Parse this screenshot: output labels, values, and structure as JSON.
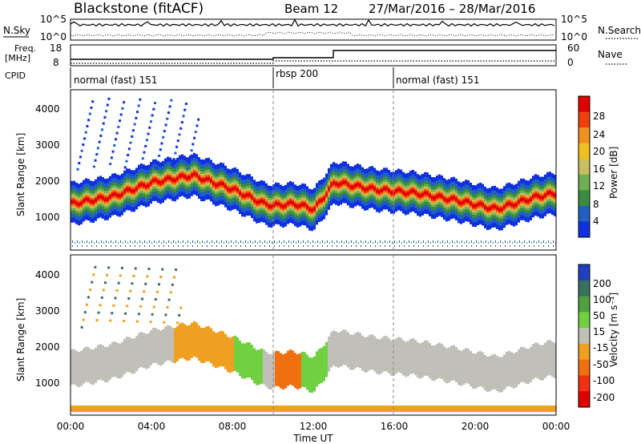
{
  "header": {
    "title": "Blackstone (fitACF)",
    "beam": "Beam 12",
    "date_range": "27/Mar/2016 – 28/Mar/2016"
  },
  "noise_panel": {
    "left_label": "N.Sky",
    "right_label": "N.Search",
    "left_ticks": [
      "10^5",
      "10^0"
    ],
    "right_ticks": [
      "10^5",
      "10^0"
    ]
  },
  "freq_panel": {
    "left_label_line1": "Freq.",
    "left_label_line2": "[MHz]",
    "left_ticks": [
      "18",
      "8"
    ],
    "right_label": "Nave",
    "right_ticks": [
      "60",
      "0"
    ]
  },
  "cpid_panel": {
    "label": "CPID",
    "segments": [
      "normal (fast) 151",
      "rbsp 200",
      "normal (fast) 151"
    ]
  },
  "x_axis": {
    "label": "Time UT",
    "ticks": [
      "00:00",
      "04:00",
      "08:00",
      "12:00",
      "16:00",
      "20:00",
      "00:00"
    ]
  },
  "power_panel": {
    "ylabel": "Slant Range [km]",
    "yticks": [
      "4000",
      "3000",
      "2000",
      "1000"
    ],
    "colorbar_label": "Power [dB]",
    "colorbar_ticks": [
      "28",
      "24",
      "20",
      "16",
      "12",
      "8",
      "4"
    ],
    "colors": [
      "#1030e0",
      "#2060c0",
      "#3a8a40",
      "#6cb050",
      "#c8c060",
      "#f0c020",
      "#f09020",
      "#f04010",
      "#e00000"
    ]
  },
  "velocity_panel": {
    "ylabel": "Slant Range [km]",
    "yticks": [
      "4000",
      "3000",
      "2000",
      "1000"
    ],
    "colorbar_label": "Velocity [m s⁻¹]",
    "colorbar_ticks": [
      "200",
      "100",
      "50",
      "15",
      "-15",
      "-50",
      "-100",
      "-200"
    ],
    "colors": [
      "#2040c0",
      "#3a7060",
      "#50a040",
      "#70d040",
      "#c0c0b8",
      "#f0a020",
      "#f07010",
      "#f03010",
      "#e00000"
    ]
  },
  "chart_data": {
    "type": "heatmap",
    "x_range_hours": [
      0,
      24
    ],
    "y_range_km": [
      0,
      4500
    ],
    "time_markers_hours": [
      10,
      16
    ],
    "cpid_boundaries_hours": [
      10,
      16
    ],
    "freq_step_hour": 13,
    "power_band": {
      "x_hours": [
        0,
        2,
        4,
        6,
        8,
        9.5,
        10,
        11,
        12,
        13,
        15,
        17,
        19,
        21,
        23,
        24
      ],
      "center_km": [
        1300,
        1500,
        1900,
        2100,
        1700,
        1300,
        1250,
        1300,
        1150,
        1900,
        1700,
        1600,
        1400,
        1150,
        1500,
        1600
      ]
    }
  }
}
